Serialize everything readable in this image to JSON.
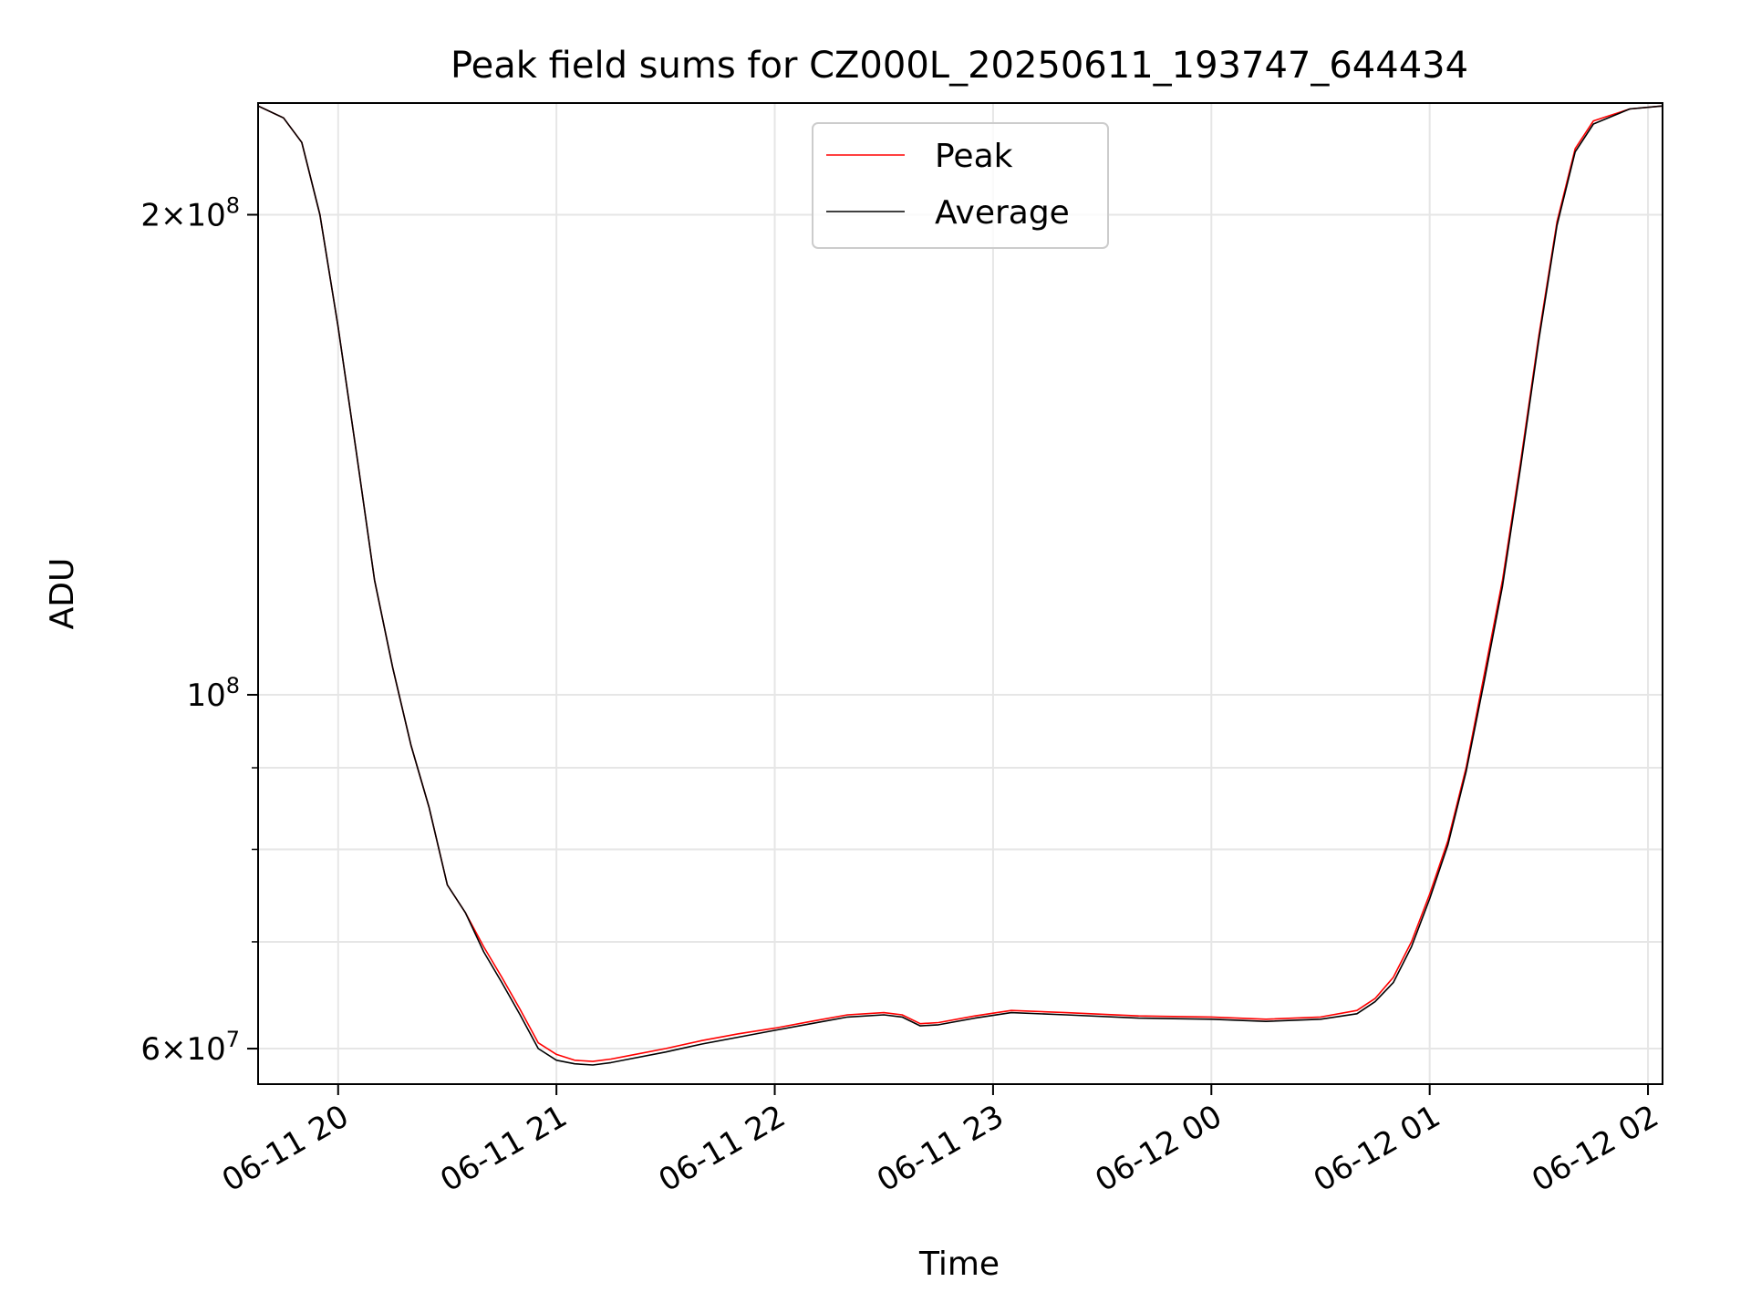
{
  "chart_data": {
    "type": "line",
    "title": "Peak field sums for CZ000L_20250611_193747_644434",
    "xlabel": "Time",
    "ylabel": "ADU",
    "x_scale": "time",
    "y_scale": "log",
    "grid": true,
    "legend_position": "top-center",
    "xlim": [
      "2025-06-11T19:38",
      "2025-06-12T02:04"
    ],
    "ylim": [
      57000000,
      235000000
    ],
    "x_ticks": [
      {
        "t": "2025-06-11T20:00",
        "label": "06-11 20"
      },
      {
        "t": "2025-06-11T21:00",
        "label": "06-11 21"
      },
      {
        "t": "2025-06-11T22:00",
        "label": "06-11 22"
      },
      {
        "t": "2025-06-11T23:00",
        "label": "06-11 23"
      },
      {
        "t": "2025-06-12T00:00",
        "label": "06-12 00"
      },
      {
        "t": "2025-06-12T01:00",
        "label": "06-12 01"
      },
      {
        "t": "2025-06-12T02:00",
        "label": "06-12 02"
      }
    ],
    "y_ticks_major": [
      {
        "v": 60000000,
        "base": "6",
        "exp": "7"
      },
      {
        "v": 100000000,
        "base": "",
        "exp": "8"
      },
      {
        "v": 200000000,
        "base": "2",
        "exp": "8"
      }
    ],
    "y_ticks_minor": [
      70000000,
      80000000,
      90000000
    ],
    "series": [
      {
        "name": "Peak",
        "color": "#ff0000",
        "points": [
          [
            "2025-06-11T19:38",
            234000000
          ],
          [
            "2025-06-11T19:45",
            230000000
          ],
          [
            "2025-06-11T19:50",
            222000000
          ],
          [
            "2025-06-11T19:55",
            200000000
          ],
          [
            "2025-06-11T20:00",
            170000000
          ],
          [
            "2025-06-11T20:05",
            142000000
          ],
          [
            "2025-06-11T20:10",
            118000000
          ],
          [
            "2025-06-11T20:15",
            104000000
          ],
          [
            "2025-06-11T20:20",
            93000000
          ],
          [
            "2025-06-11T20:25",
            85000000
          ],
          [
            "2025-06-11T20:30",
            76000000
          ],
          [
            "2025-06-11T20:35",
            73000000
          ],
          [
            "2025-06-11T20:40",
            69500000
          ],
          [
            "2025-06-11T20:45",
            66500000
          ],
          [
            "2025-06-11T20:50",
            63500000
          ],
          [
            "2025-06-11T20:55",
            60500000
          ],
          [
            "2025-06-11T21:00",
            59500000
          ],
          [
            "2025-06-11T21:05",
            59000000
          ],
          [
            "2025-06-11T21:10",
            58900000
          ],
          [
            "2025-06-11T21:15",
            59100000
          ],
          [
            "2025-06-11T21:20",
            59400000
          ],
          [
            "2025-06-11T21:30",
            60000000
          ],
          [
            "2025-06-11T21:40",
            60700000
          ],
          [
            "2025-06-11T21:50",
            61300000
          ],
          [
            "2025-06-11T22:00",
            61800000
          ],
          [
            "2025-06-11T22:10",
            62400000
          ],
          [
            "2025-06-11T22:20",
            63000000
          ],
          [
            "2025-06-11T22:30",
            63200000
          ],
          [
            "2025-06-11T22:35",
            63000000
          ],
          [
            "2025-06-11T22:40",
            62200000
          ],
          [
            "2025-06-11T22:45",
            62300000
          ],
          [
            "2025-06-11T22:55",
            62900000
          ],
          [
            "2025-06-11T23:05",
            63400000
          ],
          [
            "2025-06-11T23:20",
            63200000
          ],
          [
            "2025-06-11T23:40",
            62900000
          ],
          [
            "2025-06-12T00:00",
            62800000
          ],
          [
            "2025-06-12T00:15",
            62600000
          ],
          [
            "2025-06-12T00:30",
            62800000
          ],
          [
            "2025-06-12T00:40",
            63400000
          ],
          [
            "2025-06-12T00:45",
            64500000
          ],
          [
            "2025-06-12T00:50",
            66500000
          ],
          [
            "2025-06-12T00:55",
            70000000
          ],
          [
            "2025-06-12T01:00",
            75000000
          ],
          [
            "2025-06-12T01:05",
            81000000
          ],
          [
            "2025-06-12T01:10",
            90000000
          ],
          [
            "2025-06-12T01:15",
            103000000
          ],
          [
            "2025-06-12T01:20",
            118000000
          ],
          [
            "2025-06-12T01:25",
            140000000
          ],
          [
            "2025-06-12T01:30",
            168000000
          ],
          [
            "2025-06-12T01:35",
            198000000
          ],
          [
            "2025-06-12T01:40",
            220000000
          ],
          [
            "2025-06-12T01:45",
            229000000
          ],
          [
            "2025-06-12T01:55",
            233000000
          ],
          [
            "2025-06-12T02:04",
            234000000
          ]
        ]
      },
      {
        "name": "Average",
        "color": "#000000",
        "points": [
          [
            "2025-06-11T19:38",
            234000000
          ],
          [
            "2025-06-11T19:45",
            230000000
          ],
          [
            "2025-06-11T19:50",
            222000000
          ],
          [
            "2025-06-11T19:55",
            200000000
          ],
          [
            "2025-06-11T20:00",
            170000000
          ],
          [
            "2025-06-11T20:05",
            142000000
          ],
          [
            "2025-06-11T20:10",
            118000000
          ],
          [
            "2025-06-11T20:15",
            104000000
          ],
          [
            "2025-06-11T20:20",
            93000000
          ],
          [
            "2025-06-11T20:25",
            85000000
          ],
          [
            "2025-06-11T20:30",
            76000000
          ],
          [
            "2025-06-11T20:35",
            73000000
          ],
          [
            "2025-06-11T20:40",
            69000000
          ],
          [
            "2025-06-11T20:45",
            66000000
          ],
          [
            "2025-06-11T20:50",
            63000000
          ],
          [
            "2025-06-11T20:55",
            60000000
          ],
          [
            "2025-06-11T21:00",
            59000000
          ],
          [
            "2025-06-11T21:05",
            58700000
          ],
          [
            "2025-06-11T21:10",
            58600000
          ],
          [
            "2025-06-11T21:15",
            58800000
          ],
          [
            "2025-06-11T21:20",
            59100000
          ],
          [
            "2025-06-11T21:30",
            59700000
          ],
          [
            "2025-06-11T21:40",
            60400000
          ],
          [
            "2025-06-11T21:50",
            61000000
          ],
          [
            "2025-06-11T22:00",
            61600000
          ],
          [
            "2025-06-11T22:10",
            62200000
          ],
          [
            "2025-06-11T22:20",
            62800000
          ],
          [
            "2025-06-11T22:30",
            63000000
          ],
          [
            "2025-06-11T22:35",
            62800000
          ],
          [
            "2025-06-11T22:40",
            62000000
          ],
          [
            "2025-06-11T22:45",
            62100000
          ],
          [
            "2025-06-11T22:55",
            62700000
          ],
          [
            "2025-06-11T23:05",
            63200000
          ],
          [
            "2025-06-11T23:20",
            63000000
          ],
          [
            "2025-06-11T23:40",
            62700000
          ],
          [
            "2025-06-12T00:00",
            62600000
          ],
          [
            "2025-06-12T00:15",
            62400000
          ],
          [
            "2025-06-12T00:30",
            62600000
          ],
          [
            "2025-06-12T00:40",
            63100000
          ],
          [
            "2025-06-12T00:45",
            64200000
          ],
          [
            "2025-06-12T00:50",
            66000000
          ],
          [
            "2025-06-12T00:55",
            69500000
          ],
          [
            "2025-06-12T01:00",
            74500000
          ],
          [
            "2025-06-12T01:05",
            80500000
          ],
          [
            "2025-06-12T01:10",
            89500000
          ],
          [
            "2025-06-12T01:15",
            102000000
          ],
          [
            "2025-06-12T01:20",
            117000000
          ],
          [
            "2025-06-12T01:25",
            139000000
          ],
          [
            "2025-06-12T01:30",
            167000000
          ],
          [
            "2025-06-12T01:35",
            197000000
          ],
          [
            "2025-06-12T01:40",
            219000000
          ],
          [
            "2025-06-12T01:45",
            228000000
          ],
          [
            "2025-06-12T01:55",
            233000000
          ],
          [
            "2025-06-12T02:04",
            234000000
          ]
        ]
      }
    ]
  }
}
